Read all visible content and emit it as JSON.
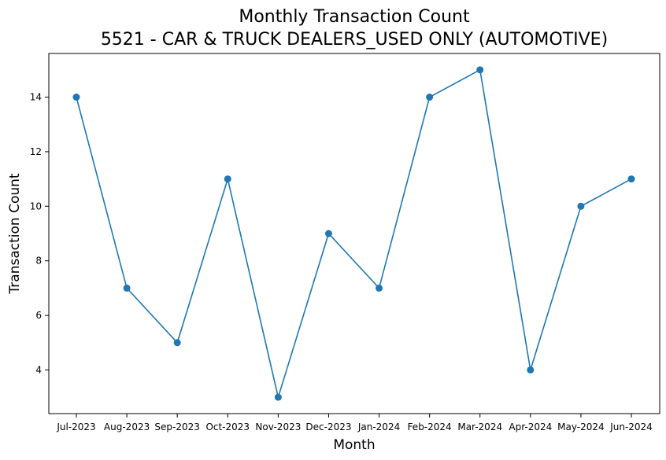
{
  "chart_data": {
    "type": "line",
    "title_line1": "Monthly Transaction Count",
    "title_line2": "5521 - CAR & TRUCK DEALERS_USED ONLY (AUTOMOTIVE)",
    "xlabel": "Month",
    "ylabel": "Transaction Count",
    "categories": [
      "Jul-2023",
      "Aug-2023",
      "Sep-2023",
      "Oct-2023",
      "Nov-2023",
      "Dec-2023",
      "Jan-2024",
      "Feb-2024",
      "Mar-2024",
      "Apr-2024",
      "May-2024",
      "Jun-2024"
    ],
    "series": [
      {
        "values": [
          14,
          7,
          5,
          11,
          3,
          9,
          7,
          14,
          15,
          4,
          10,
          11
        ]
      }
    ],
    "yticks": [
      4,
      6,
      8,
      10,
      12,
      14
    ],
    "ylim": [
      2.4,
      15.6
    ],
    "grid": false,
    "line_color": "#1f77b4"
  }
}
